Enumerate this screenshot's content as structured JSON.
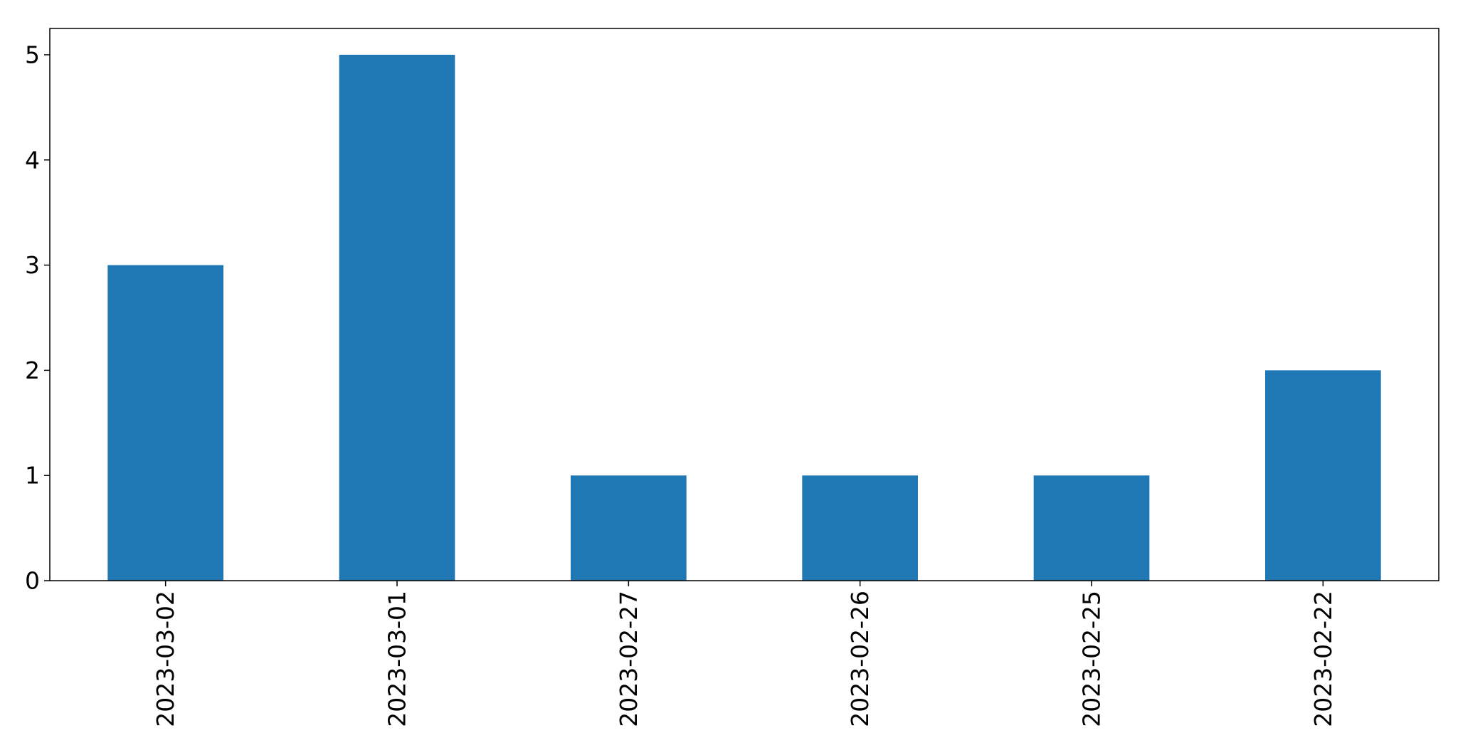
{
  "chart_data": {
    "type": "bar",
    "categories": [
      "2023-03-02",
      "2023-03-01",
      "2023-02-27",
      "2023-02-26",
      "2023-02-25",
      "2023-02-22"
    ],
    "values": [
      3,
      5,
      1,
      1,
      1,
      2
    ],
    "title": "",
    "xlabel": "",
    "ylabel": "",
    "ylim": [
      0,
      5.25
    ],
    "yticks": [
      0,
      1,
      2,
      3,
      4,
      5
    ],
    "bar_color": "#1f77b4",
    "grid": false,
    "legend": "none"
  }
}
